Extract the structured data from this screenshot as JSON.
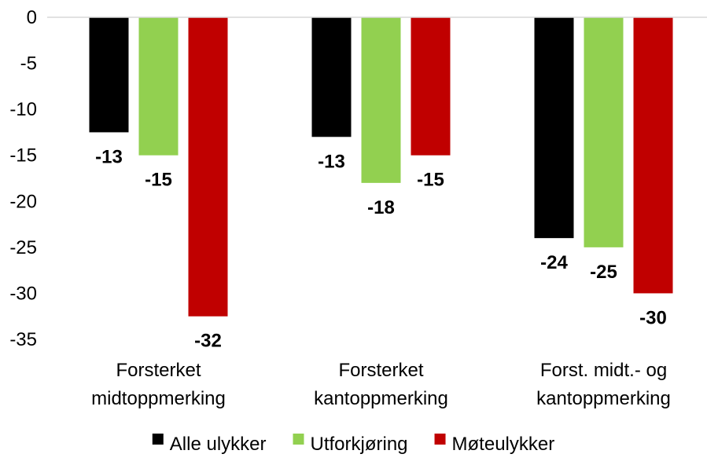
{
  "chart_data": {
    "type": "bar",
    "categories": [
      [
        "Forsterket",
        "midtoppmerking"
      ],
      [
        "Forsterket",
        "kantoppmerking"
      ],
      [
        "Forst. midt.- og",
        "kantoppmerking"
      ]
    ],
    "series": [
      {
        "name": "Alle ulykker",
        "color": "#000000",
        "values": [
          -12.5,
          -13,
          -24
        ],
        "labels": [
          "-13",
          "-13",
          "-24"
        ]
      },
      {
        "name": "Utforkjøring",
        "color": "#92D050",
        "values": [
          -15,
          -18,
          -25
        ],
        "labels": [
          "-15",
          "-18",
          "-25"
        ]
      },
      {
        "name": "Møteulykker",
        "color": "#C00000",
        "values": [
          -32.5,
          -15,
          -30
        ],
        "labels": [
          "-32",
          "-15",
          "-30"
        ]
      }
    ],
    "yticks": [
      0,
      -5,
      -10,
      -15,
      -20,
      -25,
      -30,
      -35
    ],
    "ylim": [
      -35,
      0
    ],
    "legend_position": "bottom",
    "grid": false,
    "title": "",
    "xlabel": "",
    "ylabel": ""
  }
}
